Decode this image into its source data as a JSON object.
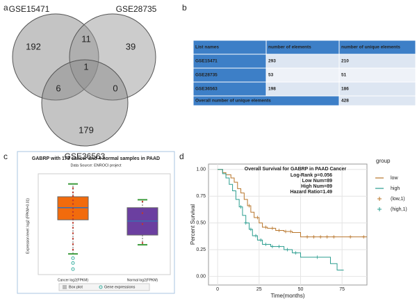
{
  "panel_labels": [
    "a",
    "b",
    "c",
    "d"
  ],
  "venn": {
    "sets": [
      "GSE15471",
      "GSE28735",
      "GSE36563"
    ],
    "regions": [
      192,
      11,
      39,
      1,
      6,
      0,
      179
    ]
  },
  "table": {
    "header": [
      "List names",
      "number of elements",
      "number of unique elements"
    ],
    "rows": [
      [
        "GSE15471",
        293,
        210
      ],
      [
        "GSE28735",
        53,
        51
      ],
      [
        "GSE36563",
        198,
        186
      ]
    ],
    "footer": [
      "Overall number of unique elements",
      428
    ]
  },
  "chart_data": [
    {
      "type": "box",
      "title": "GABRP with 178 cancer and 4 normal samples in PAAD",
      "subtitle": "Data Source: ENROCI project",
      "y_label": "Expression level: log2 (FPKM+0.01)",
      "categories": [
        "Cancer log2(FPKM)",
        "Normal log2(FPKM)"
      ],
      "colors": [
        "#f26b0c",
        "#6b3fa0"
      ],
      "min": [
        -4.6,
        -3.1
      ],
      "q1": [
        1.0,
        -1.5
      ],
      "median": [
        3.0,
        0.8
      ],
      "q3": [
        4.8,
        3.0
      ],
      "max": [
        6.9,
        4.3
      ],
      "points": [
        [
          6.2,
          5.5,
          4.9,
          4.2,
          3.6,
          2.9,
          2.3,
          1.7,
          1.1,
          0.5,
          -0.3,
          -1.2,
          -2.1,
          -3.0,
          -3.9,
          -5.3,
          -6.1,
          -7.1
        ],
        [
          4.0,
          2.1,
          0.3,
          -2.8
        ]
      ],
      "point_color": "#c0392b",
      "outlier_color": "#3aaFa0",
      "legend": [
        "Box plot",
        "Gene expressions"
      ],
      "ylim": [
        -8,
        8
      ]
    },
    {
      "type": "km",
      "title": "Overall Survival for GABRP in PAAD Cancer",
      "annotations": [
        "Log-Rank p=0.056",
        "Low Num=89",
        "High Num=89",
        "Hazard Ratio=1.49"
      ],
      "x_label": "Time(months)",
      "y_label": "Percent Survival",
      "legend_title": "group",
      "xlim": [
        -5.5,
        90
      ],
      "ylim": [
        -0.08,
        1.05
      ],
      "xticks": [
        0,
        25,
        50,
        75
      ],
      "yticks": [
        {
          "value": 0,
          "label": "0.00"
        },
        {
          "value": 0.25,
          "label": "0.25"
        },
        {
          "value": 0.5,
          "label": "0.50"
        },
        {
          "value": 0.75,
          "label": "0.75"
        },
        {
          "value": 1,
          "label": "1.00"
        }
      ],
      "grid": true,
      "series": [
        {
          "name": "low",
          "color": "#b8752a",
          "mark": "step",
          "x": [
            0,
            3,
            5,
            8,
            10,
            12,
            14,
            16,
            18,
            20,
            22,
            25,
            27,
            30,
            35,
            40,
            45,
            50,
            90
          ],
          "values": [
            1,
            0.97,
            0.95,
            0.92,
            0.88,
            0.82,
            0.78,
            0.72,
            0.66,
            0.6,
            0.55,
            0.5,
            0.46,
            0.45,
            0.43,
            0.42,
            0.41,
            0.37,
            0.37
          ]
        },
        {
          "name": "high",
          "color": "#2a9d8f",
          "mark": "step",
          "x": [
            0,
            3,
            5,
            7,
            9,
            11,
            13,
            15,
            17,
            19,
            21,
            24,
            27,
            32,
            40,
            45,
            50,
            68,
            72,
            76
          ],
          "values": [
            1,
            0.96,
            0.92,
            0.86,
            0.8,
            0.72,
            0.65,
            0.57,
            0.5,
            0.44,
            0.38,
            0.34,
            0.3,
            0.28,
            0.25,
            0.22,
            0.18,
            0.12,
            0.06,
            0.06
          ]
        },
        {
          "name": "(low,1)",
          "color": "#b8752a",
          "mark": "cross",
          "x": [
            19,
            24,
            29,
            33,
            37,
            41,
            44,
            54,
            58,
            62,
            66,
            70,
            80,
            88
          ],
          "values": [
            0.66,
            0.55,
            0.46,
            0.45,
            0.43,
            0.42,
            0.42,
            0.37,
            0.37,
            0.37,
            0.37,
            0.37,
            0.37,
            0.37
          ]
        },
        {
          "name": "(high,1)",
          "color": "#2a9d8f",
          "mark": "cross",
          "x": [
            14,
            17,
            20,
            23,
            26,
            29,
            33,
            37,
            42,
            47,
            60
          ],
          "values": [
            0.65,
            0.5,
            0.44,
            0.38,
            0.34,
            0.3,
            0.28,
            0.28,
            0.25,
            0.22,
            0.18
          ]
        }
      ]
    }
  ]
}
